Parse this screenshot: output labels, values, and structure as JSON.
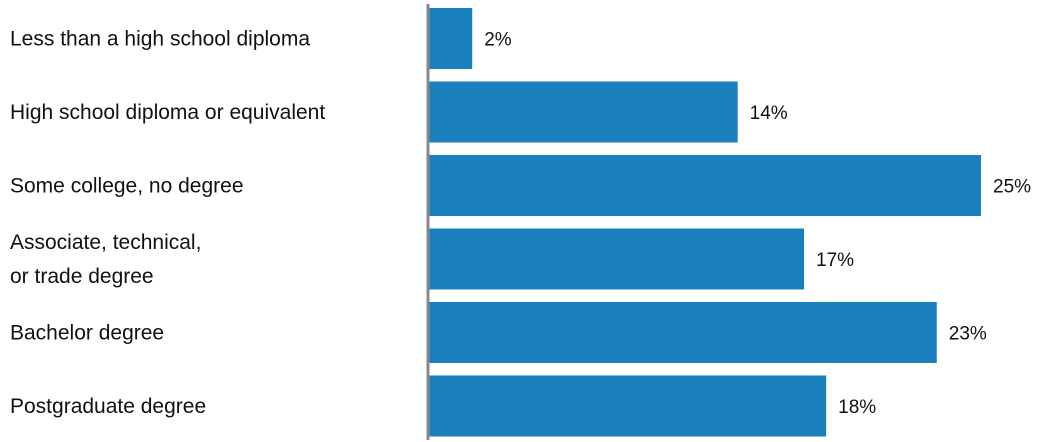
{
  "chart_data": {
    "type": "bar",
    "orientation": "horizontal",
    "categories": [
      [
        "Less than a high school diploma"
      ],
      [
        "High school diploma or equivalent"
      ],
      [
        "Some college, no degree"
      ],
      [
        "Associate, technical,",
        "or trade degree"
      ],
      [
        "Bachelor degree"
      ],
      [
        "Postgraduate degree"
      ]
    ],
    "values": [
      2,
      14,
      25,
      17,
      23,
      18
    ],
    "value_labels": [
      "2%",
      "14%",
      "25%",
      "17%",
      "23%",
      "18%"
    ],
    "unit": "%",
    "title": "",
    "xlabel": "",
    "ylabel": "",
    "xlim": [
      0,
      25
    ],
    "grid": false,
    "legend": "none",
    "colors": {
      "bar": "#1a7fbd",
      "axis": "#888888",
      "text": "#111111"
    }
  }
}
